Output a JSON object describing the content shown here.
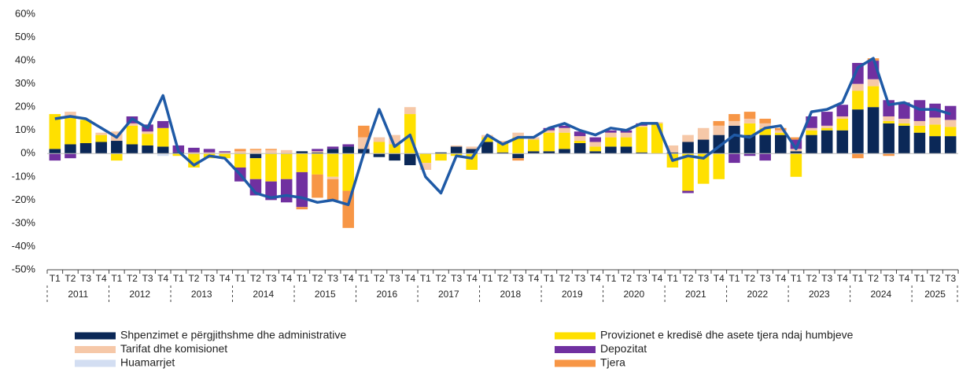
{
  "chart_data": {
    "type": "stacked-bar-line",
    "categories": [
      "T1",
      "T2",
      "T3",
      "T4",
      "T1",
      "T2",
      "T3",
      "T4",
      "T1",
      "T2",
      "T3",
      "T4",
      "T1",
      "T2",
      "T3",
      "T4",
      "T1",
      "T2",
      "T3",
      "T4",
      "T1",
      "T2",
      "T3",
      "T4",
      "T1",
      "T2",
      "T3",
      "T4",
      "T1",
      "T2",
      "T3",
      "T4",
      "T1",
      "T2",
      "T3",
      "T4",
      "T1",
      "T2",
      "T3",
      "T4",
      "T1",
      "T2",
      "T3",
      "T4",
      "T1",
      "T2",
      "T3",
      "T4",
      "T1",
      "T2",
      "T3",
      "T4",
      "T1",
      "T2",
      "T3",
      "T4",
      "T1",
      "T2",
      "T3"
    ],
    "years": [
      "2011",
      "2012",
      "2013",
      "2014",
      "2015",
      "2016",
      "2017",
      "2018",
      "2019",
      "2020",
      "2021",
      "2022",
      "2023",
      "2024",
      "2025"
    ],
    "ylim": [
      -50,
      60
    ],
    "yticks": [
      {
        "value": -50,
        "label": "-50%"
      },
      {
        "value": -40,
        "label": "-40%"
      },
      {
        "value": -30,
        "label": "-30%"
      },
      {
        "value": -20,
        "label": "-20%"
      },
      {
        "value": -10,
        "label": "-10%"
      },
      {
        "value": 0,
        "label": "0%"
      },
      {
        "value": 10,
        "label": "10%"
      },
      {
        "value": 20,
        "label": "20%"
      },
      {
        "value": 30,
        "label": "30%"
      },
      {
        "value": 40,
        "label": "40%"
      },
      {
        "value": 50,
        "label": "50%"
      },
      {
        "value": 60,
        "label": "60%"
      }
    ],
    "grid": false,
    "series": [
      {
        "name": "Shpenzimet e përgjithshme dhe administrative",
        "color": "#0b2857",
        "values": [
          2,
          4,
          4.5,
          5,
          5.5,
          4,
          3.5,
          3,
          0.5,
          0,
          0,
          0,
          0,
          -2,
          0,
          0,
          1,
          0.5,
          2,
          3,
          2,
          -1.5,
          -3,
          -5,
          0,
          0.5,
          3,
          2,
          5,
          0.5,
          -2,
          1,
          1,
          2,
          4.5,
          1,
          3,
          3,
          0.5,
          0,
          0.5,
          5,
          6,
          8,
          12,
          8,
          8,
          8,
          1,
          8,
          10,
          10,
          19,
          20,
          13,
          12,
          9,
          7.5,
          7.5
        ]
      },
      {
        "name": "Provizionet e kredisë dhe asete tjera ndaj humbjeve",
        "color": "#ffe000",
        "values": [
          15,
          12,
          10,
          3,
          -3,
          8,
          5,
          8,
          -1,
          -6,
          -2,
          -2,
          -6,
          -9,
          -12,
          -11,
          -8,
          -9,
          -10,
          -16,
          0,
          5,
          4,
          17,
          -4,
          -3,
          -1,
          -7,
          2,
          4,
          7,
          5,
          8,
          7,
          1,
          2,
          4,
          4,
          11,
          13,
          -6,
          -16,
          -13,
          -11,
          0,
          5,
          3,
          1,
          -10,
          2,
          1,
          5,
          8,
          9,
          1,
          1,
          3,
          5,
          4
        ]
      },
      {
        "name": "Tarifat dhe komisionet",
        "color": "#f6c8a8",
        "values": [
          0,
          2,
          0,
          1,
          4,
          1,
          1,
          0,
          0,
          0.5,
          0.5,
          0.5,
          1,
          1.5,
          1.5,
          1.5,
          0,
          0.5,
          -1,
          0,
          5,
          2,
          4,
          3,
          -3,
          0,
          0.5,
          1,
          1,
          1,
          2,
          1,
          1,
          2,
          2,
          2,
          2,
          2,
          0.5,
          0.5,
          3,
          3,
          5,
          4,
          2,
          2,
          2,
          1,
          1,
          1,
          1,
          1,
          3,
          3,
          2,
          2,
          2,
          3,
          3
        ]
      },
      {
        "name": "Depozitat",
        "color": "#7030a0",
        "values": [
          -3,
          -2,
          0,
          0,
          0,
          3,
          3,
          3,
          3,
          2,
          1.5,
          0.5,
          -6,
          -7,
          -8,
          -10,
          -15,
          1,
          1,
          1,
          0,
          0,
          0,
          0,
          0,
          0,
          0,
          0,
          0,
          0,
          0,
          0,
          1,
          1,
          2,
          2,
          1,
          1,
          1,
          0,
          0,
          -1,
          0,
          0,
          -4,
          -1,
          -3,
          0,
          4,
          5,
          6,
          5,
          9,
          8,
          7,
          7,
          9,
          6,
          6
        ]
      },
      {
        "name": "Huamarrjet",
        "color": "#d3def2",
        "values": [
          0,
          0,
          0,
          0,
          0,
          0,
          0,
          -1,
          0,
          0,
          0,
          0,
          0,
          0,
          0,
          0,
          0,
          0,
          0,
          0,
          0,
          0,
          0,
          0,
          0,
          0,
          0,
          0,
          0,
          0,
          0,
          0,
          0,
          0,
          0,
          0,
          0,
          0,
          0,
          0,
          0,
          0,
          0,
          0,
          0,
          0,
          0,
          0,
          0,
          0,
          0,
          0,
          0,
          0,
          0,
          0,
          0,
          0,
          0
        ]
      },
      {
        "name": "Tjera",
        "color": "#f79646",
        "values": [
          0,
          0,
          0,
          0,
          0,
          0,
          0,
          0,
          0,
          0,
          0,
          0,
          1,
          0.5,
          0.5,
          0,
          -1,
          -10,
          -9,
          -16,
          5,
          0,
          0,
          0,
          0,
          0,
          0,
          0,
          0,
          0,
          -1,
          0,
          0,
          0,
          0,
          0,
          0,
          0,
          0,
          0,
          0,
          0,
          0,
          2,
          3,
          3,
          2,
          1,
          1,
          0,
          0,
          0,
          -2,
          1,
          -1,
          0,
          0,
          0,
          0
        ]
      }
    ],
    "line": {
      "color": "#1f5aa6",
      "values": [
        15,
        16,
        15,
        11,
        7,
        15,
        11,
        25,
        1,
        -5,
        -1,
        -2,
        -9,
        -17,
        -19,
        -18,
        -19,
        -21,
        -20,
        -22,
        0,
        19,
        3,
        8,
        -10,
        -17,
        -1,
        -2,
        8,
        4,
        7,
        7,
        11,
        13,
        10,
        8,
        11,
        10,
        13,
        13,
        -3,
        -1,
        -2,
        3,
        8,
        7,
        11,
        12,
        2,
        18,
        19,
        22,
        37,
        41,
        21,
        22,
        19,
        19,
        17
      ]
    },
    "legend_order": [
      0,
      2,
      4,
      1,
      3,
      5
    ]
  }
}
